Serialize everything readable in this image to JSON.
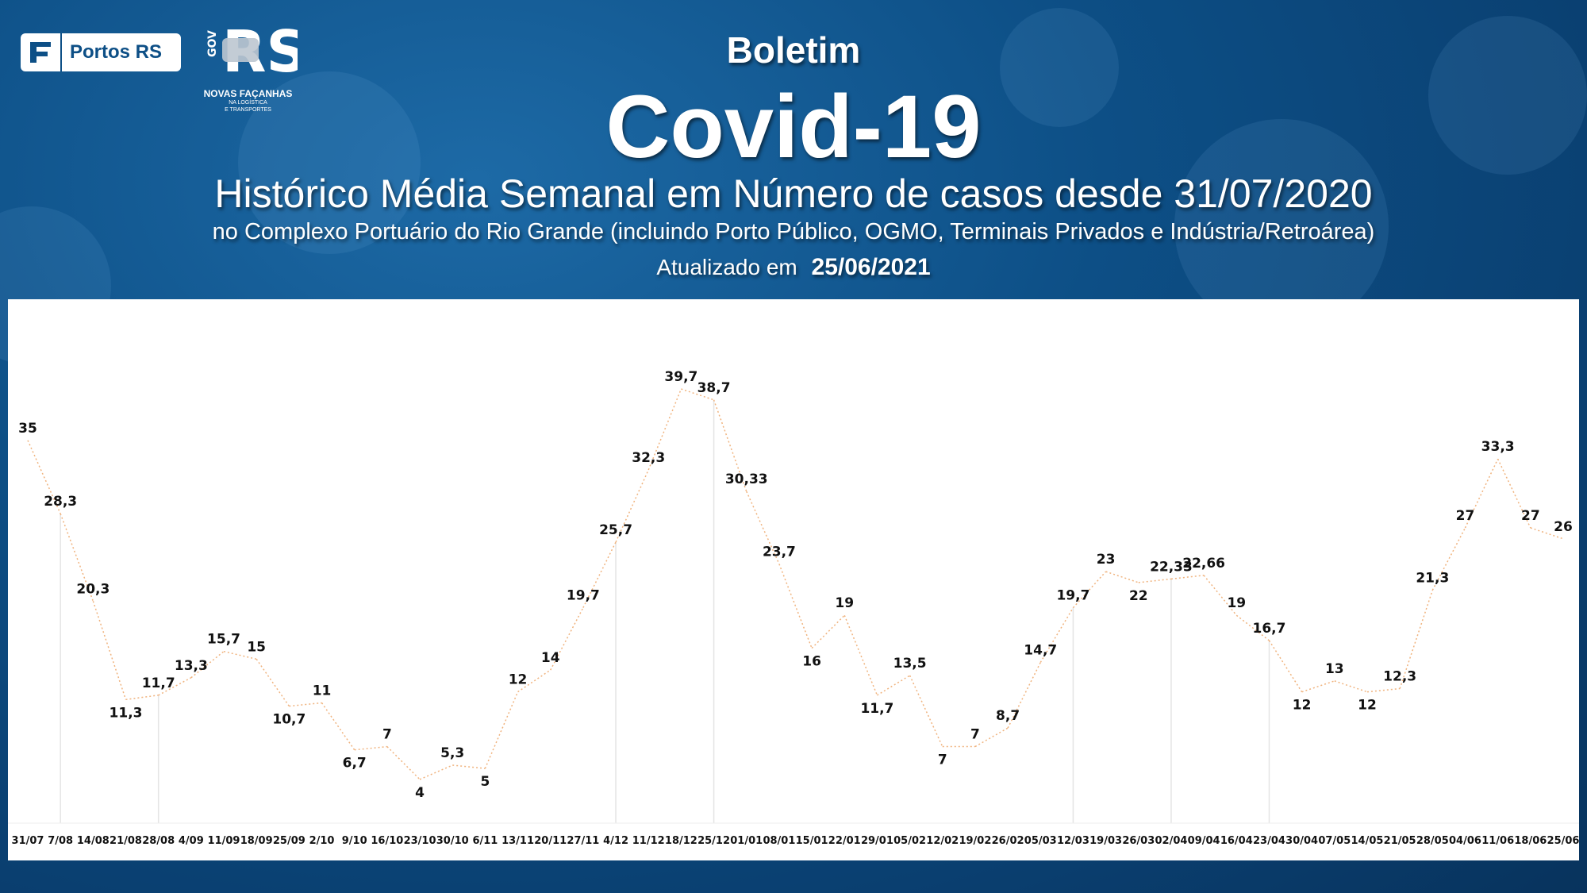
{
  "header": {
    "portos_logo_text": "Portos RS",
    "rs_logo_text": "RS",
    "rs_logo_gov": "GOV",
    "rs_logo_slogan": "NOVAS FAÇANHAS",
    "rs_logo_sub1": "NA LOGÍSTICA",
    "rs_logo_sub2": "E TRANSPORTES",
    "title_small": "Boletim",
    "title_big": "Covid-19",
    "subtitle": "Histórico Média Semanal em Número de casos desde 31/07/2020",
    "description": "no Complexo Portuário do Rio Grande (incluindo Porto Público, OGMO, Terminais Privados e Indústria/Retroárea)",
    "updated_label": "Atualizado em",
    "updated_date": "25/06/2021"
  },
  "colors": {
    "line": "#f0b37e",
    "label": "#111111",
    "vertical_marker": "#e4e4e4"
  },
  "chart_data": {
    "type": "line",
    "title": "",
    "xlabel": "",
    "ylabel": "",
    "ylim": [
      0,
      45
    ],
    "grid": false,
    "categories": [
      "31/07",
      "7/08",
      "14/08",
      "21/08",
      "28/08",
      "4/09",
      "11/09",
      "18/09",
      "25/09",
      "2/10",
      "9/10",
      "16/10",
      "23/10",
      "30/10",
      "6/11",
      "13/11",
      "20/11",
      "27/11",
      "4/12",
      "11/12",
      "18/12",
      "25/12",
      "01/01",
      "08/01",
      "15/01",
      "22/01",
      "29/01",
      "05/02",
      "12/02",
      "19/02",
      "26/02",
      "05/03",
      "12/03",
      "19/03",
      "26/03",
      "02/04",
      "09/04",
      "16/04",
      "23/04",
      "30/04",
      "07/05",
      "14/05",
      "21/05",
      "28/05",
      "04/06",
      "11/06",
      "18/06",
      "25/06"
    ],
    "tick_labels": [
      "31/07",
      "7/08",
      "14/08",
      "21/08",
      "28/08",
      "4/09",
      "11/09",
      "18/09",
      "25/09",
      "2/10",
      "9/10",
      "16/10",
      "23/10",
      "30/10",
      "6/11",
      "13/11",
      "20/11",
      "27/11",
      "4/12",
      "11/12",
      "18/12",
      "25/12",
      "01/01",
      "08/01",
      "15/01",
      "22/01",
      "29/01",
      "05/02",
      "12/02",
      "19/02",
      "26/02",
      "05/03",
      "12/03",
      "19/03",
      "26/03",
      "02/04",
      "09/04",
      "16/04",
      "23/04",
      "30/04",
      "07/05",
      "14/05",
      "21/05",
      "28/05",
      "04/06",
      "11/06",
      "18/06",
      "25/06"
    ],
    "series": [
      {
        "values": [
          35,
          28.3,
          20.3,
          11.3,
          11.7,
          13.3,
          15.7,
          15,
          10.7,
          11,
          6.7,
          7,
          4,
          5.3,
          5,
          12,
          14,
          19.7,
          25.7,
          32.3,
          39.7,
          38.7,
          30.33,
          23.7,
          16,
          19,
          11.7,
          13.5,
          7,
          7,
          8.7,
          14.7,
          19.7,
          23,
          22,
          22.33,
          22.66,
          19,
          16.7,
          12,
          13,
          12,
          12.3,
          21.3,
          27,
          33.3,
          27,
          26
        ],
        "labels": [
          "35",
          "28,3",
          "20,3",
          "11,3",
          "11,7",
          "13,3",
          "15,7",
          "15",
          "10,7",
          "11",
          "6,7",
          "7",
          "4",
          "5,3",
          "5",
          "12",
          "14",
          "19,7",
          "25,7",
          "32,3",
          "39,7",
          "38,7",
          "30,33",
          "23,7",
          "16",
          "19",
          "11,7",
          "13,5",
          "7",
          "7",
          "8,7",
          "14,7",
          "19,7",
          "23",
          "22",
          "22,33",
          "22,66",
          "19",
          "16,7",
          "12",
          "13",
          "12",
          "12,3",
          "21,3",
          "27",
          "33,3",
          "27",
          "26"
        ]
      }
    ],
    "vertical_markers": [
      "7/08",
      "28/08",
      "4/12",
      "25/12",
      "12/03",
      "02/04",
      "23/04"
    ]
  }
}
